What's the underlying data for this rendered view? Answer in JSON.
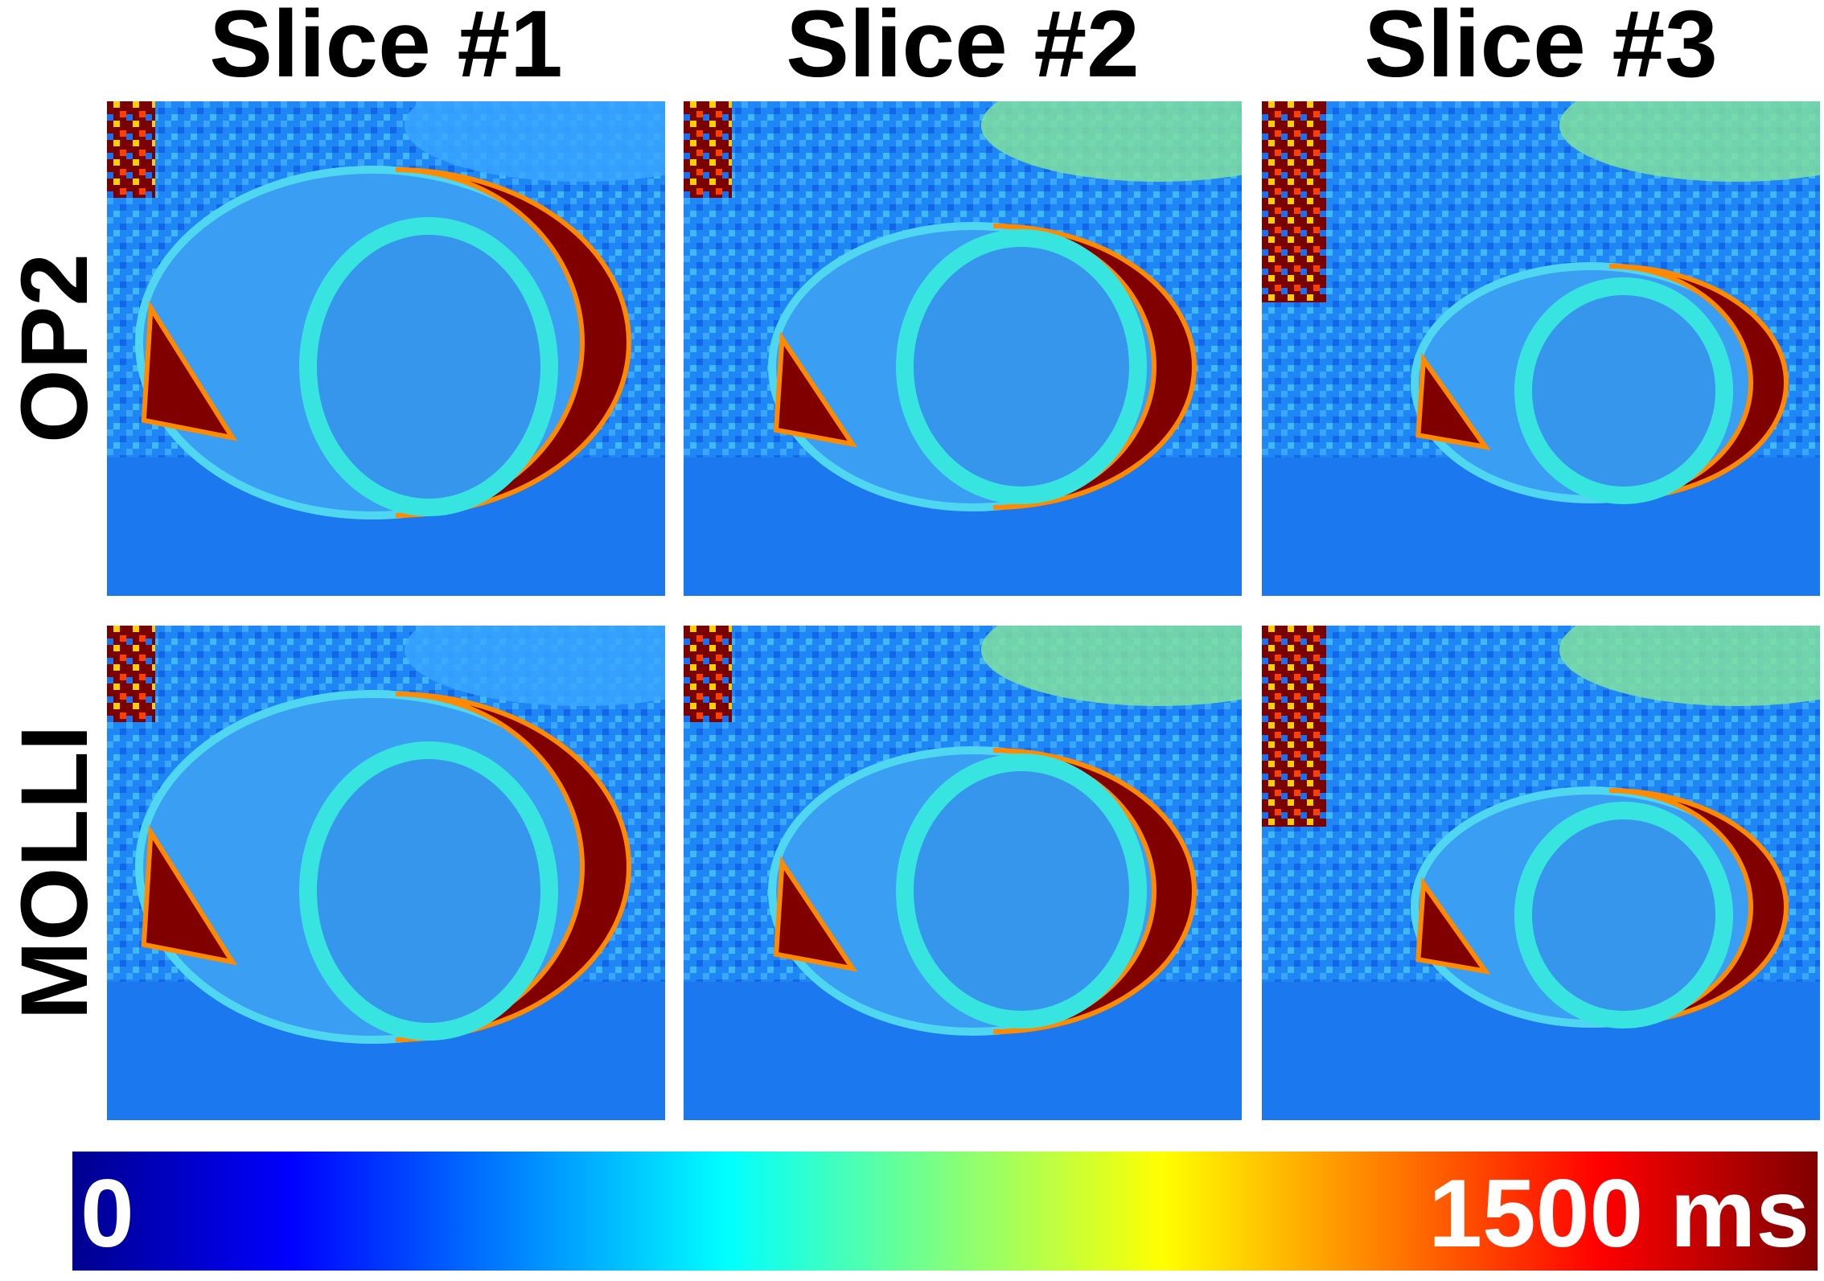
{
  "column_headers": [
    "Slice #1",
    "Slice #2",
    "Slice #3"
  ],
  "row_labels": [
    "OP2",
    "MOLLI"
  ],
  "colorbar": {
    "min_label": "0",
    "max_label": "1500 ms"
  }
}
